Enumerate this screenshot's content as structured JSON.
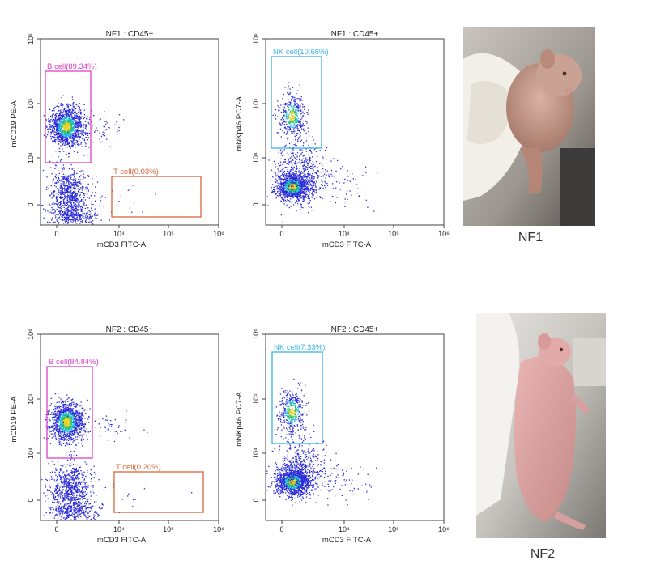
{
  "chart_data": [
    {
      "type": "scatter",
      "title": "NF1 : CD45+",
      "xlabel": "mCD3 FITC-A",
      "ylabel": "mCD19 PE-A",
      "x_ticks": [
        "0",
        "10⁴",
        "10⁵",
        "10⁶"
      ],
      "y_ticks": [
        "0",
        "10⁴",
        "10⁵",
        "10⁶"
      ],
      "gates": [
        {
          "label": "B cell(89.34%)",
          "color": "#e040c8"
        },
        {
          "label": "T cell(0.03%)",
          "color": "#d9663a"
        }
      ],
      "populations": [
        {
          "name": "B cell",
          "percent": 89.34
        },
        {
          "name": "T cell",
          "percent": 0.03
        }
      ]
    },
    {
      "type": "scatter",
      "title": "NF1 : CD45+",
      "xlabel": "mCD3 FITC-A",
      "ylabel": "mNKp46 PC7-A",
      "x_ticks": [
        "0",
        "10⁴",
        "10⁵",
        "10⁶"
      ],
      "y_ticks": [
        "0",
        "10⁴",
        "10⁵",
        "10⁶"
      ],
      "gates": [
        {
          "label": "NK cell(10.66%)",
          "color": "#3ab4e8"
        }
      ],
      "populations": [
        {
          "name": "NK cell",
          "percent": 10.66
        }
      ]
    },
    {
      "type": "scatter",
      "title": "NF2 : CD45+",
      "xlabel": "mCD3 FITC-A",
      "ylabel": "mCD19 PE-A",
      "x_ticks": [
        "0",
        "10⁴",
        "10⁵",
        "10⁶"
      ],
      "y_ticks": [
        "0",
        "10⁴",
        "10⁵",
        "10⁶"
      ],
      "gates": [
        {
          "label": "B cell(84.84%)",
          "color": "#e040c8"
        },
        {
          "label": "T cell(0.20%)",
          "color": "#d9663a"
        }
      ],
      "populations": [
        {
          "name": "B cell",
          "percent": 84.84
        },
        {
          "name": "T cell",
          "percent": 0.2
        }
      ]
    },
    {
      "type": "scatter",
      "title": "NF2 : CD45+",
      "xlabel": "mCD3 FITC-A",
      "ylabel": "mNKp46 PC7-A",
      "x_ticks": [
        "0",
        "10⁴",
        "10⁵",
        "10⁶"
      ],
      "y_ticks": [
        "0",
        "10⁴",
        "10⁵",
        "10⁶"
      ],
      "gates": [
        {
          "label": "NK cell(7.33%)",
          "color": "#3ab4e8"
        }
      ],
      "populations": [
        {
          "name": "NK cell",
          "percent": 7.33
        }
      ]
    }
  ],
  "photos": [
    {
      "label": "NF1"
    },
    {
      "label": "NF2"
    }
  ]
}
